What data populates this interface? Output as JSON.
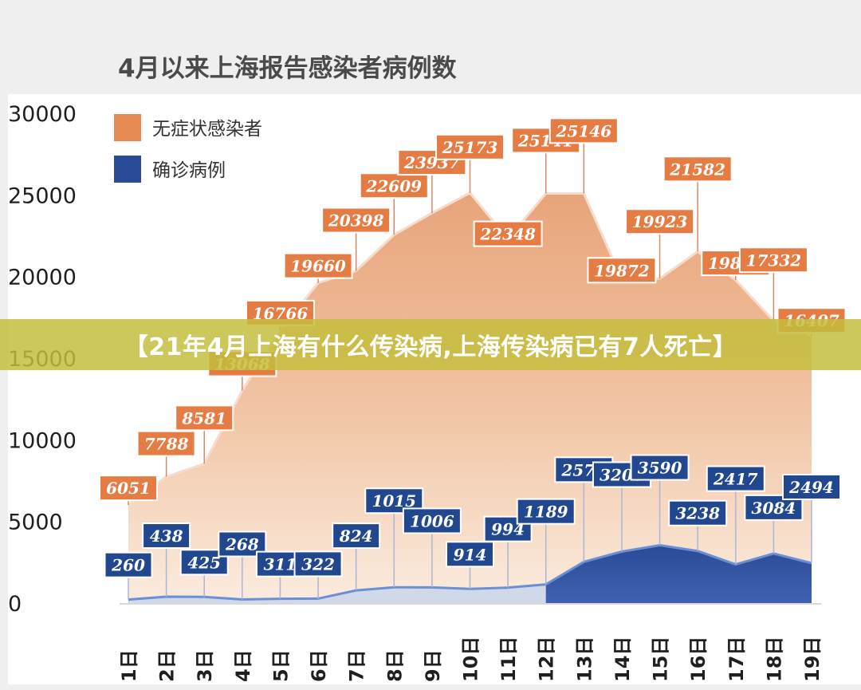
{
  "chart_data": {
    "type": "area",
    "title": "4月以来上海报告感染者病例数",
    "xlabel": "",
    "ylabel": "",
    "ylim": [
      0,
      30000
    ],
    "yticks": [
      0,
      5000,
      10000,
      15000,
      20000,
      25000,
      30000
    ],
    "ytick_labels": [
      "0",
      "5000",
      "10000",
      "15000",
      "20000",
      "25000",
      "30000"
    ],
    "categories": [
      "1日",
      "2日",
      "3日",
      "4日",
      "5日",
      "6日",
      "7日",
      "8日",
      "9日",
      "10日",
      "11日",
      "12日",
      "13日",
      "14日",
      "15日",
      "16日",
      "17日",
      "18日",
      "19日"
    ],
    "legend_position": "top-left",
    "series": [
      {
        "name": "无症状感染者",
        "color": "#e58a55",
        "values": [
          6051,
          7788,
          8581,
          13068,
          16766,
          19660,
          20398,
          22609,
          23937,
          25173,
          22348,
          25141,
          25146,
          19872,
          19923,
          21582,
          19831,
          17332,
          16407
        ]
      },
      {
        "name": "确诊病例",
        "color": "#2a4b97",
        "values": [
          260,
          438,
          425,
          268,
          311,
          322,
          824,
          1015,
          1006,
          914,
          994,
          1189,
          2573,
          3200,
          3590,
          3238,
          2417,
          3084,
          2494
        ]
      }
    ]
  },
  "banner": {
    "text": "【21年4月上海有什么传染病,上海传染病已有7人死亡】"
  }
}
